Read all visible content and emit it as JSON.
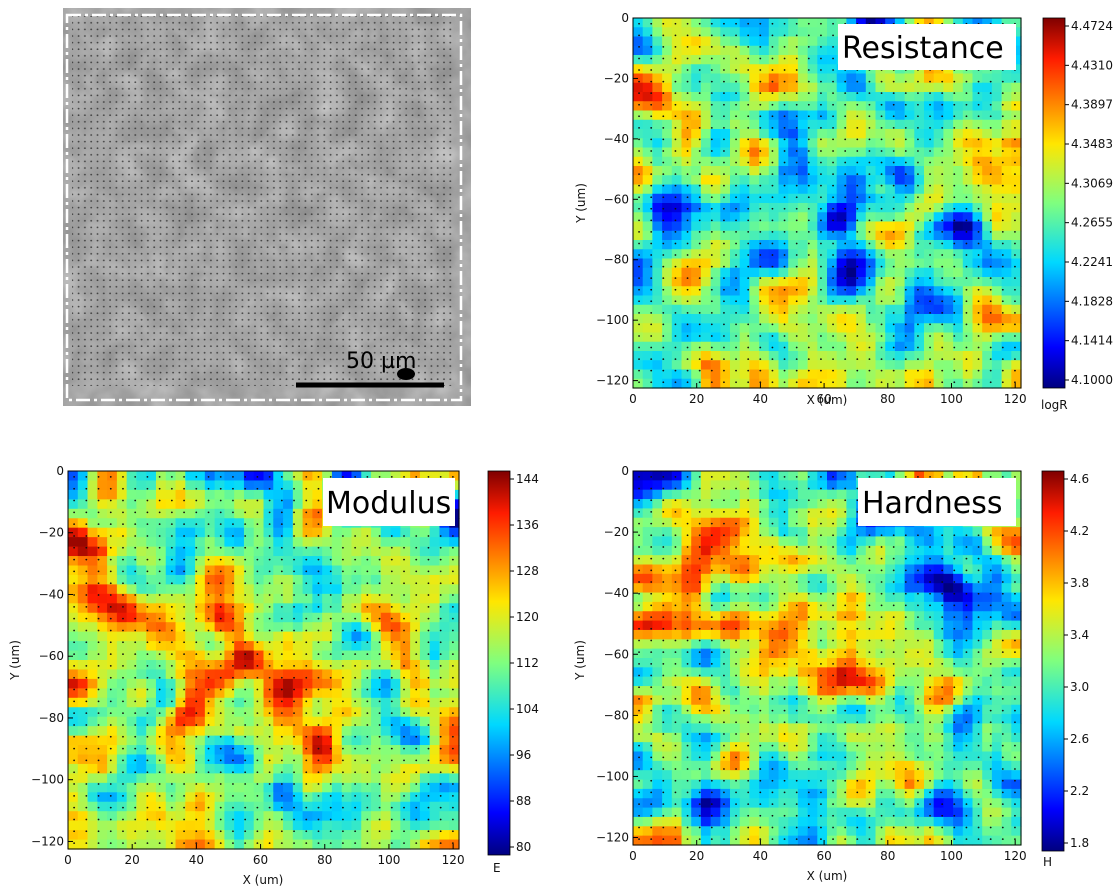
{
  "micrograph": {
    "scale_bar_label": "50 µm"
  },
  "chart_data": [
    {
      "type": "heatmap",
      "title": "Resistance",
      "xlabel": "X (um)",
      "ylabel": "Y (um)",
      "xlim": [
        0,
        120
      ],
      "ylim": [
        -120,
        0
      ],
      "x_ticks": [
        0,
        20,
        40,
        60,
        80,
        100,
        120
      ],
      "y_ticks": [
        0,
        -20,
        -40,
        -60,
        -80,
        -100,
        -120
      ],
      "colorbar_label": "logR",
      "colorbar_range": [
        4.1,
        4.4724
      ],
      "colorbar_ticks": [
        "4.4724",
        "4.4310",
        "4.3897",
        "4.3483",
        "4.3069",
        "4.2655",
        "4.2241",
        "4.1828",
        "4.1414",
        "4.1000"
      ],
      "colormap": "jet",
      "seed": 11
    },
    {
      "type": "heatmap",
      "title": "Modulus",
      "xlabel": "X (um)",
      "ylabel": "Y (um)",
      "xlim": [
        0,
        120
      ],
      "ylim": [
        -120,
        0
      ],
      "x_ticks": [
        0,
        20,
        40,
        60,
        80,
        100,
        120
      ],
      "y_ticks": [
        0,
        -20,
        -40,
        -60,
        -80,
        -100,
        -120
      ],
      "colorbar_label": "E",
      "colorbar_range": [
        80,
        144
      ],
      "colorbar_ticks": [
        "144",
        "136",
        "128",
        "120",
        "112",
        "104",
        "96",
        "88",
        "80"
      ],
      "colormap": "jet",
      "seed": 23
    },
    {
      "type": "heatmap",
      "title": "Hardness",
      "xlabel": "X (um)",
      "ylabel": "Y (um)",
      "xlim": [
        0,
        120
      ],
      "ylim": [
        -120,
        0
      ],
      "x_ticks": [
        0,
        20,
        40,
        60,
        80,
        100,
        120
      ],
      "y_ticks": [
        0,
        -20,
        -40,
        -60,
        -80,
        -100,
        -120
      ],
      "colorbar_label": "H",
      "colorbar_range": [
        1.8,
        4.8
      ],
      "colorbar_ticks": [
        "4.6",
        "4.2",
        "3.8",
        "3.4",
        "3.0",
        "2.6",
        "2.2",
        "1.8"
      ],
      "colormap": "jet",
      "seed": 37
    }
  ]
}
